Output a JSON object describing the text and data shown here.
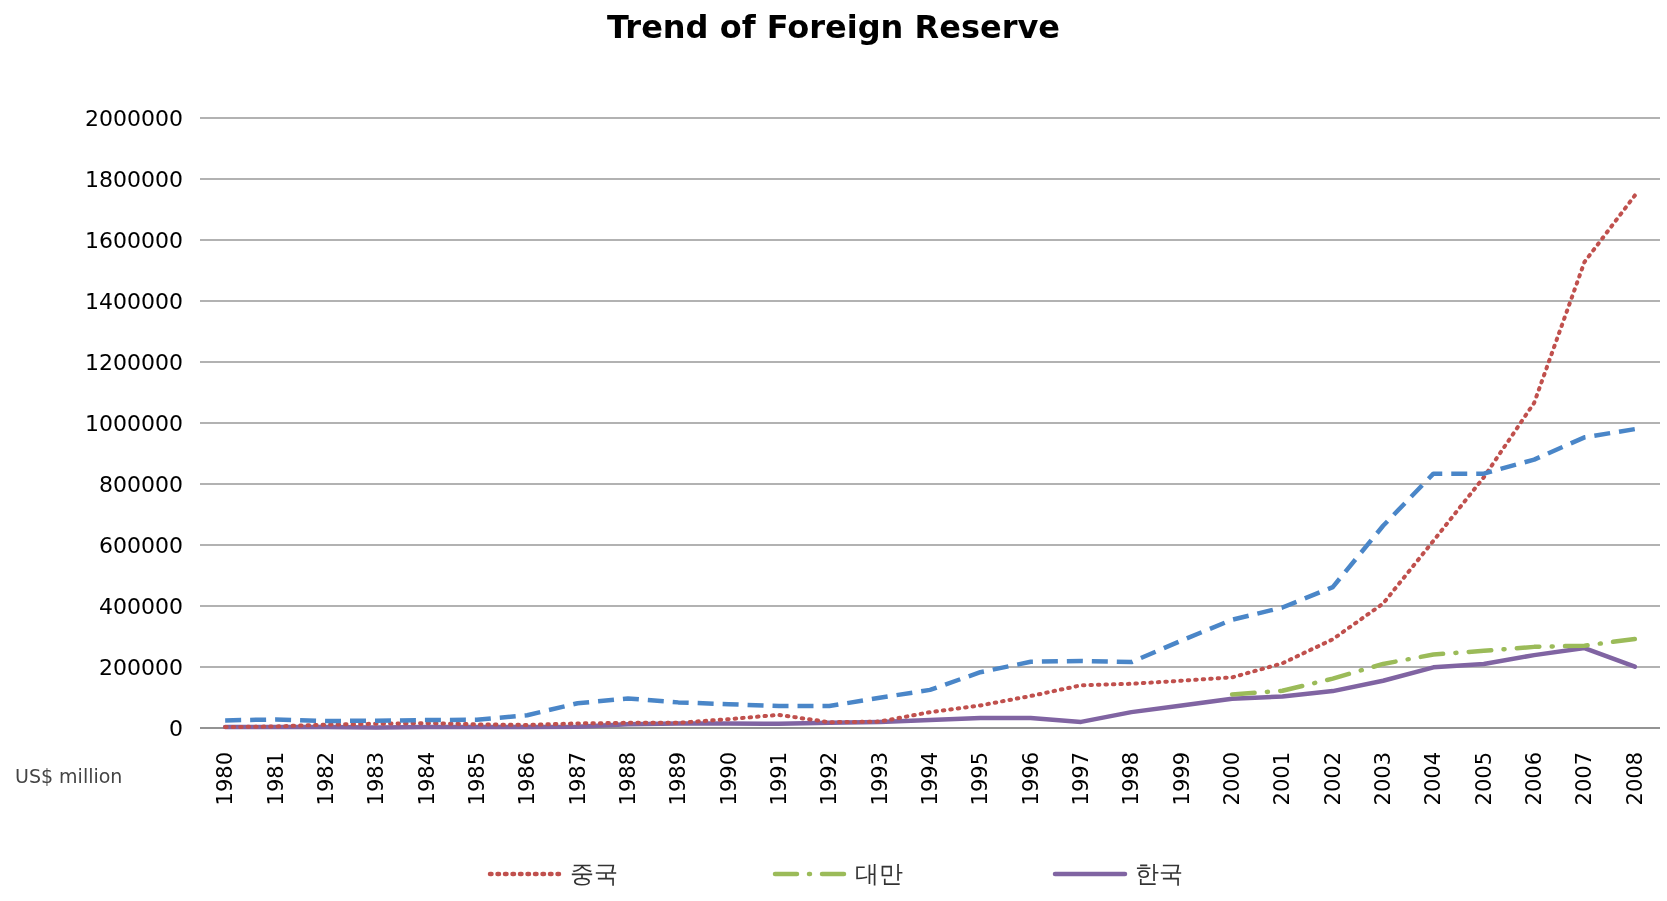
{
  "chart_data": {
    "type": "line",
    "title": "Trend of Foreign Reserve",
    "ylabel": "US$ million",
    "categories": [
      "1980",
      "1981",
      "1982",
      "1983",
      "1984",
      "1985",
      "1986",
      "1987",
      "1988",
      "1989",
      "1990",
      "1991",
      "1992",
      "1993",
      "1994",
      "1995",
      "1996",
      "1997",
      "1998",
      "1999",
      "2000",
      "2001",
      "2002",
      "2003",
      "2004",
      "2005",
      "2006",
      "2007",
      "2008"
    ],
    "ylim": [
      0,
      2000000
    ],
    "yticks": [
      0,
      200000,
      400000,
      600000,
      800000,
      1000000,
      1200000,
      1400000,
      1600000,
      1800000,
      2000000
    ],
    "grid": "y",
    "legend": "bottom",
    "marker": "none",
    "series": [
      {
        "color": "#4a86c8",
        "line_style": "dashed",
        "values": [
          25000,
          28000,
          23000,
          24000,
          26000,
          27000,
          42000,
          81000,
          97000,
          84000,
          78000,
          72000,
          72000,
          99000,
          125000,
          183000,
          217000,
          220000,
          216000,
          287000,
          355000,
          395000,
          462000,
          663000,
          834000,
          834000,
          880000,
          953000,
          980000
        ]
      },
      {
        "name": "중국",
        "color": "#c0504d",
        "line_style": "dotted",
        "values": [
          3000,
          5000,
          11000,
          14000,
          16000,
          12000,
          10000,
          15000,
          17000,
          17000,
          29000,
          43000,
          19000,
          21000,
          52000,
          74000,
          105000,
          140000,
          145000,
          155000,
          166000,
          212000,
          291000,
          408000,
          614000,
          822000,
          1066000,
          1528000,
          1746000
        ]
      },
      {
        "name": "대만",
        "color": "#9bbb59",
        "line_style": "dashdot",
        "values": [
          null,
          null,
          null,
          null,
          null,
          null,
          null,
          null,
          null,
          null,
          null,
          null,
          null,
          null,
          null,
          null,
          null,
          null,
          null,
          null,
          110000,
          122000,
          162000,
          210000,
          241000,
          253000,
          266000,
          270000,
          292000
        ]
      },
      {
        "name": "한국",
        "color": "#8064a2",
        "line_style": "solid",
        "values": [
          3000,
          3000,
          3000,
          2000,
          3000,
          3000,
          3000,
          4000,
          12000,
          15000,
          15000,
          14000,
          17000,
          20000,
          26000,
          33000,
          33000,
          20000,
          52000,
          74000,
          96000,
          103000,
          121000,
          155000,
          199000,
          210000,
          239000,
          262000,
          201000
        ]
      }
    ]
  }
}
